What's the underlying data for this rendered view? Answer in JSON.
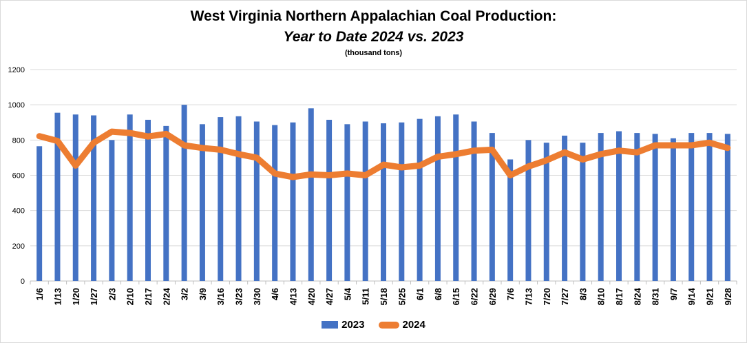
{
  "colors": {
    "bar": "#4472C4",
    "line": "#ED7D31",
    "grid": "#d9d9d9",
    "text": "#000000"
  },
  "chart_data": {
    "type": "bar",
    "title": "West Virginia Northern Appalachian Coal Production:",
    "subtitle": "Year to Date 2024 vs. 2023",
    "ylabel": "(thousand tons)",
    "xlabel": "",
    "ylim": [
      0,
      1200
    ],
    "yticks": [
      0,
      200,
      400,
      600,
      800,
      1000,
      1200
    ],
    "grid": true,
    "legend": "bottom",
    "categories": [
      "1/6",
      "1/13",
      "1/20",
      "1/27",
      "2/3",
      "2/10",
      "2/17",
      "2/24",
      "3/2",
      "3/9",
      "3/16",
      "3/23",
      "3/30",
      "4/6",
      "4/13",
      "4/20",
      "4/27",
      "5/4",
      "5/11",
      "5/18",
      "5/25",
      "6/1",
      "6/8",
      "6/15",
      "6/22",
      "6/29",
      "7/6",
      "7/13",
      "7/20",
      "7/27",
      "8/3",
      "8/10",
      "8/17",
      "8/24",
      "8/31",
      "9/7",
      "9/14",
      "9/21",
      "9/28"
    ],
    "series": [
      {
        "name": "2023",
        "type": "bar",
        "values": [
          765,
          955,
          945,
          940,
          800,
          945,
          915,
          880,
          1000,
          890,
          930,
          935,
          905,
          885,
          900,
          980,
          915,
          890,
          905,
          895,
          900,
          920,
          935,
          945,
          905,
          840,
          690,
          800,
          785,
          825,
          785,
          840,
          850,
          840,
          835,
          810,
          840,
          840,
          835
        ]
      },
      {
        "name": "2024",
        "type": "line",
        "values": [
          822,
          795,
          655,
          785,
          848,
          840,
          820,
          835,
          770,
          755,
          745,
          720,
          700,
          610,
          590,
          605,
          600,
          610,
          600,
          660,
          645,
          655,
          705,
          720,
          740,
          745,
          600,
          650,
          685,
          730,
          690,
          720,
          740,
          730,
          770,
          770,
          770,
          785,
          755
        ]
      }
    ]
  }
}
